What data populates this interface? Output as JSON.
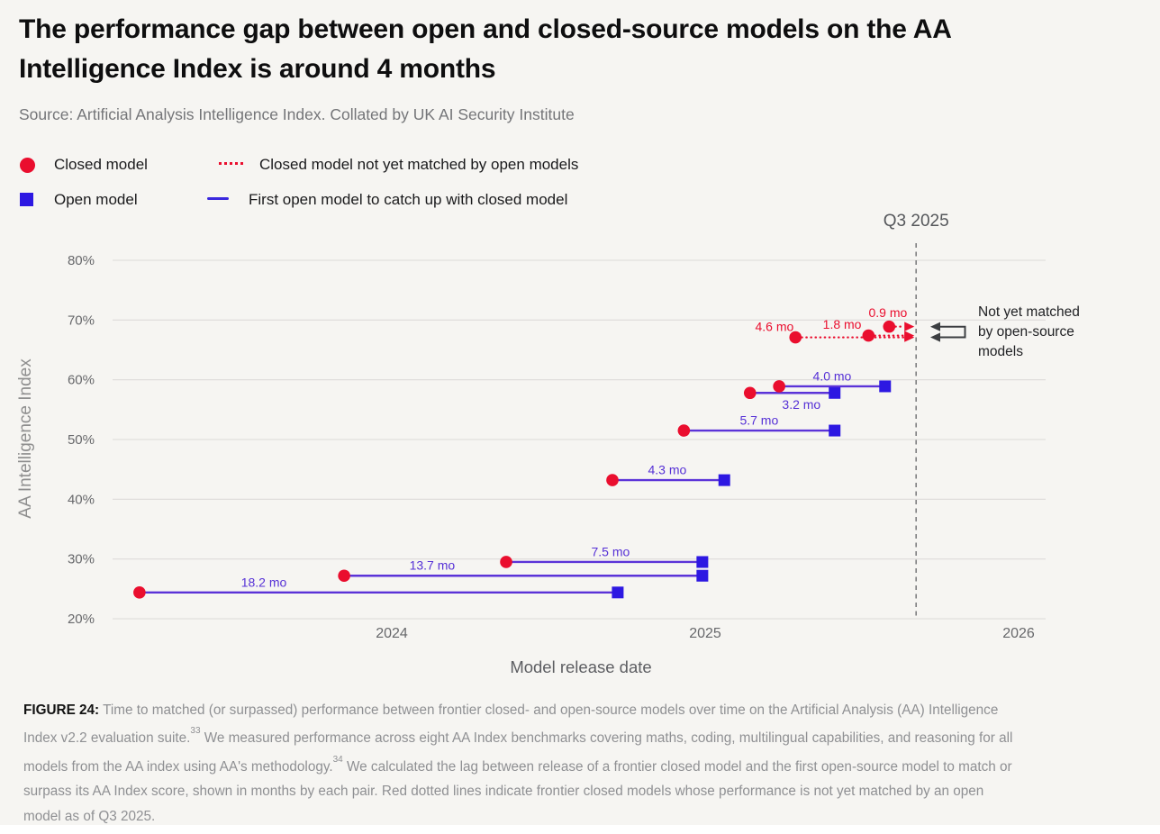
{
  "header": {
    "title_line1": "The performance gap between open and closed-source models on the AA",
    "title_line2": "Intelligence Index is around 4 months",
    "source": "Source: Artificial Analysis Intelligence Index. Collated by UK AI Security Institute"
  },
  "legend": {
    "closed_model": "Closed model",
    "open_model": "Open model",
    "closed_unmatched": "Closed model not yet matched by open models",
    "first_open": "First open model to catch up with closed model"
  },
  "chart_data": {
    "type": "scatter",
    "title": "",
    "xlabel": "Model release date",
    "ylabel": "AA Intelligence Index",
    "grid": true,
    "ylim": [
      20,
      80
    ],
    "xlim_years": [
      2023.11,
      2026.09
    ],
    "y_ticks": [
      {
        "label": "20%",
        "value": 20
      },
      {
        "label": "30%",
        "value": 30
      },
      {
        "label": "40%",
        "value": 40
      },
      {
        "label": "50%",
        "value": 50
      },
      {
        "label": "60%",
        "value": 60
      },
      {
        "label": "70%",
        "value": 70
      },
      {
        "label": "80%",
        "value": 80
      }
    ],
    "x_ticks": [
      {
        "label": "2024",
        "year": 2024
      },
      {
        "label": "2025",
        "year": 2025
      },
      {
        "label": "2026",
        "year": 2026
      }
    ],
    "reference_line": {
      "label": "Q3 2025",
      "year": 2025.673
    },
    "matched_pairs": [
      {
        "gap_label": "18.2 mo",
        "gap_months": 18.2,
        "closed_year": 2023.195,
        "open_year": 2024.721,
        "index_pct": 24.4,
        "label_year": 2023.592,
        "label_side": "above"
      },
      {
        "gap_label": "13.7 mo",
        "gap_months": 13.7,
        "closed_year": 2023.848,
        "open_year": 2024.991,
        "index_pct": 27.2,
        "label_year": 2024.129,
        "label_side": "above"
      },
      {
        "gap_label": "7.5 mo",
        "gap_months": 7.5,
        "closed_year": 2024.365,
        "open_year": 2024.991,
        "index_pct": 29.5,
        "label_year": 2024.698,
        "label_side": "above"
      },
      {
        "gap_label": "4.3 mo",
        "gap_months": 4.3,
        "closed_year": 2024.704,
        "open_year": 2025.061,
        "index_pct": 43.2,
        "label_year": 2024.879,
        "label_side": "above"
      },
      {
        "gap_label": "5.7 mo",
        "gap_months": 5.7,
        "closed_year": 2024.932,
        "open_year": 2025.413,
        "index_pct": 51.5,
        "label_year": 2025.172,
        "label_side": "above"
      },
      {
        "gap_label": "3.2 mo",
        "gap_months": 3.2,
        "closed_year": 2025.143,
        "open_year": 2025.413,
        "index_pct": 57.8,
        "label_year": 2025.307,
        "label_side": "below"
      },
      {
        "gap_label": "4.0 mo",
        "gap_months": 4.0,
        "closed_year": 2025.236,
        "open_year": 2025.574,
        "index_pct": 58.9,
        "label_year": 2025.405,
        "label_side": "above"
      }
    ],
    "unmatched_closed": [
      {
        "gap_label": "4.6 mo",
        "gap_months": 4.6,
        "closed_year": 2025.288,
        "index_pct": 67.1,
        "label_year": 2025.221,
        "label_dy": -7
      },
      {
        "gap_label": "1.8 mo",
        "gap_months": 1.8,
        "closed_year": 2025.521,
        "index_pct": 67.4,
        "label_year": 2025.437,
        "label_dy": -7.5
      },
      {
        "gap_label": "0.9 mo",
        "gap_months": 0.9,
        "closed_year": 2025.587,
        "index_pct": 68.9,
        "label_year": 2025.583,
        "label_dy": -10.5
      }
    ],
    "annotation": {
      "lines": [
        "Not yet matched",
        "by open-source",
        "models"
      ]
    }
  },
  "caption": {
    "lines": [
      [
        {
          "b": "FIGURE 24:"
        },
        {
          "t": " Time to matched (or surpassed) performance between frontier closed- and open-source models over time on the Artificial Analysis (AA) Intelligence"
        }
      ],
      [
        {
          "t": "Index v2.2 evaluation suite."
        },
        {
          "sup": "33"
        },
        {
          "t": " We measured performance across eight AA Index benchmarks covering maths, coding, multilingual capabilities, and reasoning for all"
        }
      ],
      [
        {
          "t": "models from the AA index using AA's methodology."
        },
        {
          "sup": "34"
        },
        {
          "t": " We calculated the lag between release of a frontier closed model and the first open-source model to match or"
        }
      ],
      [
        {
          "t": "surpass its AA Index score, shown in months by each pair. Red dotted lines indicate frontier closed models whose performance is not yet matched by an open"
        }
      ],
      [
        {
          "t": "model as of Q3 2025."
        }
      ]
    ]
  },
  "colors": {
    "background": "#f6f5f2",
    "card_white": "#ffffff",
    "title_text": "#0e0e0f",
    "source_text": "#747578",
    "legend_text": "#1a1a1c",
    "red": "#ea0e2e",
    "blue": "#2d18e2",
    "legend_dash_blue": "#3a28de",
    "purple": "#5b33d8",
    "purple_label": "#5631d6",
    "grid": "#dcdbd8",
    "tick_text": "#67686b",
    "y_axis_title_text": "#8e8e8e",
    "x_axis_title_text": "#5d5e62",
    "reference_line": "#7e7f80",
    "reference_label_text": "#55575b",
    "annotation_text": "#212225",
    "annotation_arrow": "#3c3e41",
    "caption_text": "#8f9093",
    "caption_label_text": "#121212"
  }
}
